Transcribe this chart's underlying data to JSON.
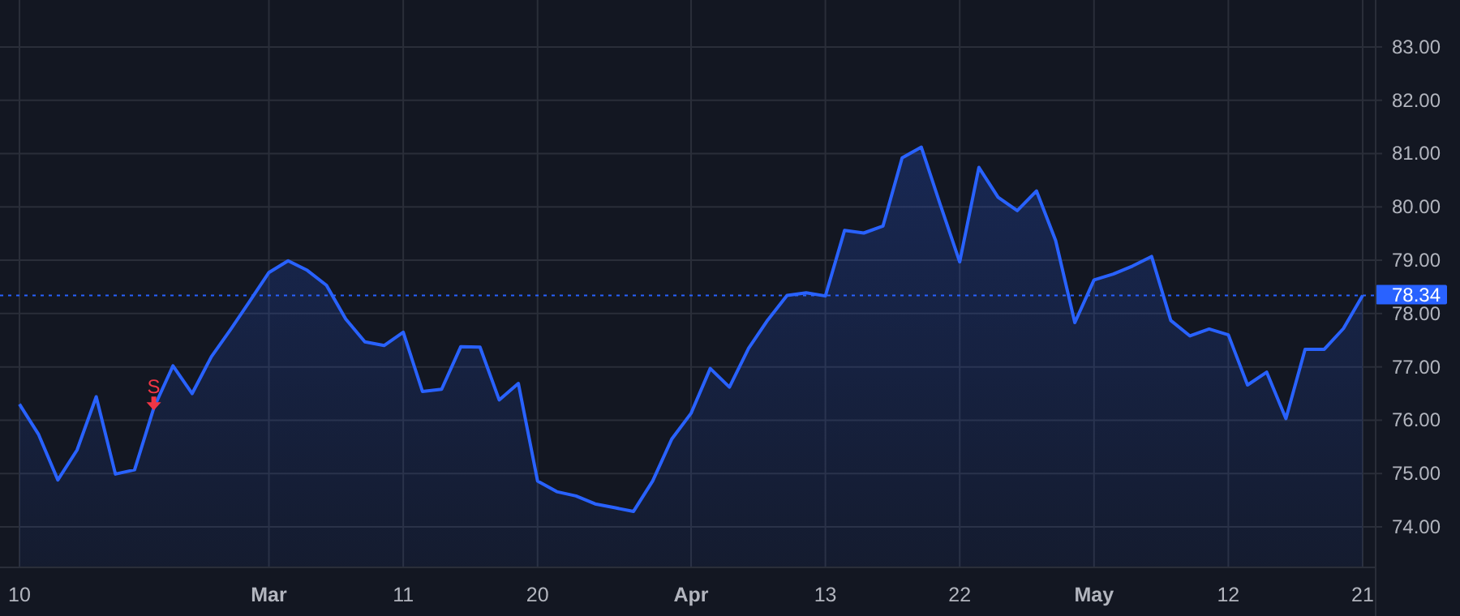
{
  "chart_data": {
    "type": "area",
    "categories": [
      "10",
      null,
      null,
      null,
      null,
      null,
      null,
      null,
      null,
      null,
      null,
      null,
      null,
      "Mar",
      null,
      null,
      null,
      null,
      null,
      null,
      "11",
      null,
      null,
      null,
      null,
      null,
      null,
      "20",
      null,
      null,
      null,
      null,
      null,
      null,
      null,
      "Apr",
      null,
      null,
      null,
      null,
      null,
      null,
      "13",
      null,
      null,
      null,
      null,
      null,
      null,
      "22",
      null,
      null,
      null,
      null,
      null,
      null,
      "May",
      null,
      null,
      null,
      null,
      null,
      null,
      "12",
      null,
      null,
      null,
      null,
      null,
      null,
      "21"
    ],
    "series": [
      {
        "color": "#2962ff",
        "values": [
          76.3,
          75.73,
          74.88,
          75.44,
          76.44,
          74.99,
          75.07,
          76.23,
          77.02,
          76.5,
          77.19,
          77.7,
          78.23,
          78.77,
          78.99,
          78.81,
          78.53,
          77.9,
          77.47,
          77.4,
          77.65,
          76.54,
          76.58,
          77.38,
          77.37,
          76.38,
          76.69,
          74.86,
          74.66,
          74.58,
          74.43,
          74.36,
          74.29,
          74.86,
          75.65,
          76.13,
          76.97,
          76.62,
          77.35,
          77.88,
          78.34,
          78.39,
          78.33,
          79.56,
          79.51,
          79.64,
          80.92,
          81.12,
          80.03,
          78.97,
          80.74,
          80.18,
          79.93,
          80.3,
          79.37,
          77.83,
          78.63,
          78.74,
          78.89,
          79.07,
          77.87,
          77.58,
          77.71,
          77.6,
          76.66,
          76.9,
          76.03,
          77.33,
          77.33,
          77.72,
          78.34
        ]
      }
    ],
    "ylim": [
      73.24,
      83.88
    ],
    "yticks": [
      {
        "value": 74,
        "label": "74.00"
      },
      {
        "value": 75,
        "label": "75.00"
      },
      {
        "value": 76,
        "label": "76.00"
      },
      {
        "value": 77,
        "label": "77.00"
      },
      {
        "value": 78,
        "label": "78.00"
      },
      {
        "value": 79,
        "label": "79.00"
      },
      {
        "value": 80,
        "label": "80.00"
      },
      {
        "value": 81,
        "label": "81.00"
      },
      {
        "value": 82,
        "label": "82.00"
      },
      {
        "value": 83,
        "label": "83.00"
      }
    ],
    "grid": true,
    "ref_lines": [
      {
        "axis": "y",
        "value": 78.34,
        "label": "78.34",
        "color": "#2962ff",
        "line_style": "dotted"
      }
    ],
    "annotations": [
      {
        "text": "S",
        "y": 76.23
      }
    ]
  }
}
